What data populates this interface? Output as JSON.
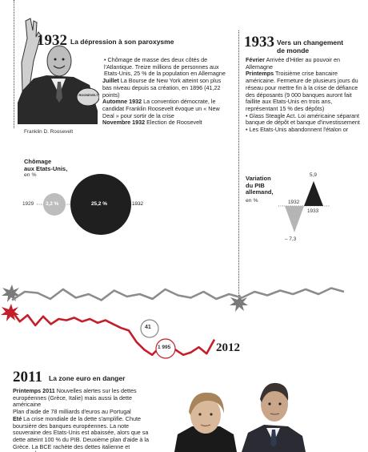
{
  "s1932": {
    "year": "1932",
    "title": "La dépression à son paroxysme",
    "caption": "Franklin D. Roosevelt",
    "para1": "• Chômage de masse des deux côtés de l'Atlantique. Treize millions de personnes aux Etats-Unis, 25 % de la population en Allemagne",
    "juillet_label": "Juillet",
    "juillet_text": " La Bourse de New York atteint son plus bas niveau depuis sa création, en 1896 (41,22 points)",
    "automne_label": "Automne 1932",
    "automne_text": " La convention démocrate, le candidat Franklin Roosevelt évoque un « New Deal » pour sortir de la crise",
    "novembre_label": "Novembre 1932",
    "novembre_text": " Election de Roosevelt",
    "photo_placard": "ROOSEVELT"
  },
  "unemployment": {
    "title_line1": "Chômage",
    "title_line2": "aux Etats-Unis,",
    "unit": "en %",
    "left_year": "1929",
    "right_year": "1932",
    "v1929": "3,2 %",
    "v1932": "25,2 %"
  },
  "s1933": {
    "year": "1933",
    "title_line1": "Vers un changement",
    "title_line2": "de monde",
    "fevrier_label": "Février",
    "fevrier_text": " Arrivée d'Hitler au pouvoir en Allemagne",
    "printemps_label": "Printemps",
    "printemps_text": " Troisième crise bancaire américaine. Fermeture de plusieurs jours du réseau pour mettre fin à la crise de défiance des déposants (9 000 banques auront fait faillite aux Etats-Unis en trois ans, représentant 15 % des dépôts)",
    "glass": "• Glass Steagle Act. Loi américaine séparant banque de dépôt et banque d'investissement",
    "gold": "• Les Etats-Unis abandonnent l'étalon or"
  },
  "gdp": {
    "title_line1": "Variation",
    "title_line2": "du PIB",
    "title_line3": "allemand,",
    "unit": "en %",
    "label_1932": "1932",
    "label_1933": "1933",
    "val_1932": "– 7,3",
    "val_1933": "5,9"
  },
  "chart_data": {
    "type": "line",
    "series": [
      {
        "values": [
          0.55,
          0.2,
          0.25,
          0.5,
          0.1,
          0.45,
          0.3,
          0.55,
          0.15,
          0.4,
          0.3,
          0.5,
          0.1,
          0.35,
          0.45,
          0.2,
          0.5,
          0.3,
          0.45,
          0.2,
          0.35,
          0.15,
          0.3,
          0.1,
          0.3,
          0.05,
          0.2
        ]
      },
      {
        "values": [
          0.2,
          0.6,
          0.35,
          0.75,
          0.4,
          0.7,
          0.5,
          0.55,
          0.45,
          0.6,
          0.5,
          0.65,
          0.55,
          0.7,
          0.85,
          0.95,
          1.4,
          1.7,
          1.9,
          1.6,
          2.0,
          1.7,
          1.9,
          1.8,
          1.6,
          1.85,
          1.3
        ]
      }
    ],
    "annotations": [
      "41",
      "1 995",
      "2012"
    ]
  },
  "s2011": {
    "year": "2011",
    "title": "La zone euro en danger",
    "printemps_label": "Printemps 2011",
    "printemps_text": " Nouvelles alertes sur les dettes européennes (Grèce, Italie) mais aussi la dette américaine",
    "plan_text": "Plan d'aide de 78 milliards d'euros au Portugal",
    "ete_label": "Eté",
    "ete_text": " La crise mondiale de la dette s'amplifie. Chute boursière des banques européennes. La note souveraine des Etats-Unis est abaissée, alors que sa dette atteint 100 % du PIB. Deuxième plan d'aide à la Grèce. La BCE rachète des dettes italienne et espagnole"
  }
}
